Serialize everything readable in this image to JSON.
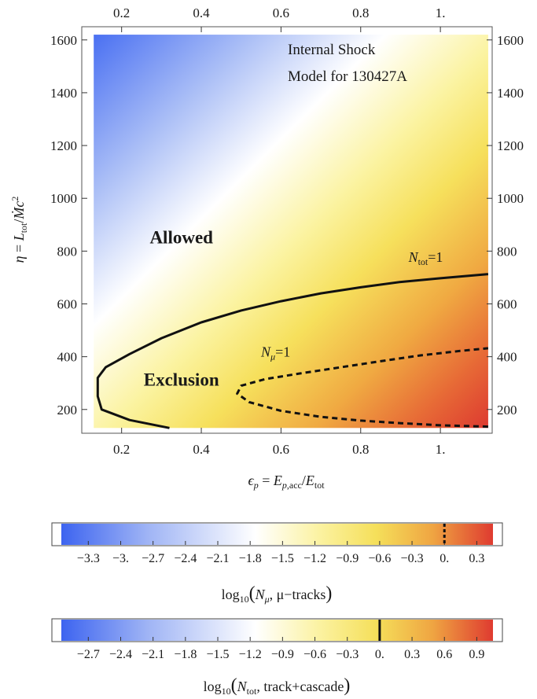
{
  "chart_data": [
    {
      "type": "heatmap",
      "title": "",
      "annotation": [
        "Internal Shock",
        "Model for 130427A"
      ],
      "xlabel": "ϵp = Ep,acc/Etot",
      "ylabel": "η = Ltot/Ṁc²",
      "xlim": [
        0.1,
        1.13
      ],
      "ylim": [
        110,
        1650
      ],
      "x_ticks": [
        0.2,
        0.4,
        0.6,
        0.8,
        1.0
      ],
      "x_tick_labels": [
        "0.2",
        "0.4",
        "0.6",
        "0.8",
        "1."
      ],
      "y_ticks": [
        200,
        400,
        600,
        800,
        1000,
        1200,
        1400,
        1600
      ],
      "y_tick_labels": [
        "200",
        "400",
        "600",
        "800",
        "1000",
        "1200",
        "1400",
        "1600"
      ],
      "data_extent": {
        "x": [
          0.13,
          1.12
        ],
        "y": [
          130,
          1620
        ]
      },
      "regions": [
        {
          "label": "Allowed",
          "x": 0.35,
          "y": 830
        },
        {
          "label": "Exclusion",
          "x": 0.35,
          "y": 290
        }
      ],
      "series": [
        {
          "name": "Ntot=1",
          "label_main": "N",
          "label_sub": "tot",
          "label_rest": "=1",
          "style": "solid",
          "label_x": 0.92,
          "label_y": 760,
          "points": [
            [
              0.32,
              130
            ],
            [
              0.22,
              160
            ],
            [
              0.15,
              200
            ],
            [
              0.14,
              250
            ],
            [
              0.14,
              320
            ],
            [
              0.16,
              360
            ],
            [
              0.22,
              410
            ],
            [
              0.3,
              470
            ],
            [
              0.4,
              530
            ],
            [
              0.5,
              575
            ],
            [
              0.6,
              610
            ],
            [
              0.7,
              640
            ],
            [
              0.8,
              663
            ],
            [
              0.9,
              683
            ],
            [
              1.0,
              697
            ],
            [
              1.12,
              713
            ]
          ]
        },
        {
          "name": "Nmu=1",
          "label_main": "N",
          "label_sub": "μ",
          "label_rest": "=1",
          "style": "dashed",
          "label_x": 0.55,
          "label_y": 400,
          "points": [
            [
              1.12,
              135
            ],
            [
              1.0,
              140
            ],
            [
              0.9,
              148
            ],
            [
              0.8,
              158
            ],
            [
              0.7,
              172
            ],
            [
              0.6,
              195
            ],
            [
              0.52,
              228
            ],
            [
              0.49,
              260
            ],
            [
              0.5,
              290
            ],
            [
              0.56,
              315
            ],
            [
              0.65,
              337
            ],
            [
              0.75,
              360
            ],
            [
              0.85,
              383
            ],
            [
              0.95,
              405
            ],
            [
              1.05,
              422
            ],
            [
              1.12,
              432
            ]
          ]
        }
      ]
    },
    {
      "type": "colorbar",
      "quantity": "log10(Nμ, μ−tracks)",
      "label_parts": {
        "fn": "log",
        "sub": "10",
        "open": "(",
        "var": "N",
        "var_sub": "μ",
        "rest": ", μ−tracks",
        "close": ")"
      },
      "range": [
        -3.55,
        0.45
      ],
      "ticks": [
        -3.3,
        -3.0,
        -2.7,
        -2.4,
        -2.1,
        -1.8,
        -1.5,
        -1.2,
        -0.9,
        -0.6,
        -0.3,
        0.0,
        0.3
      ],
      "tick_labels": [
        "−3.3",
        "−3.",
        "−2.7",
        "−2.4",
        "−2.1",
        "−1.8",
        "−1.5",
        "−1.2",
        "−0.9",
        "−0.6",
        "−0.3",
        "0.",
        "0.3"
      ],
      "marker": {
        "value": 0.0,
        "style": "dashed"
      }
    },
    {
      "type": "colorbar",
      "quantity": "log10(Ntot, track+cascade)",
      "label_parts": {
        "fn": "log",
        "sub": "10",
        "open": "(",
        "var": "N",
        "var_sub": "tot",
        "rest": ", track+cascade",
        "close": ")"
      },
      "range": [
        -2.95,
        1.05
      ],
      "ticks": [
        -2.7,
        -2.4,
        -2.1,
        -1.8,
        -1.5,
        -1.2,
        -0.9,
        -0.6,
        -0.3,
        0.0,
        0.3,
        0.6,
        0.9
      ],
      "tick_labels": [
        "−2.7",
        "−2.4",
        "−2.1",
        "−1.8",
        "−1.5",
        "−1.2",
        "−0.9",
        "−0.6",
        "−0.3",
        "0.",
        "0.3",
        "0.6",
        "0.9"
      ],
      "marker": {
        "value": 0.0,
        "style": "solid"
      }
    }
  ]
}
